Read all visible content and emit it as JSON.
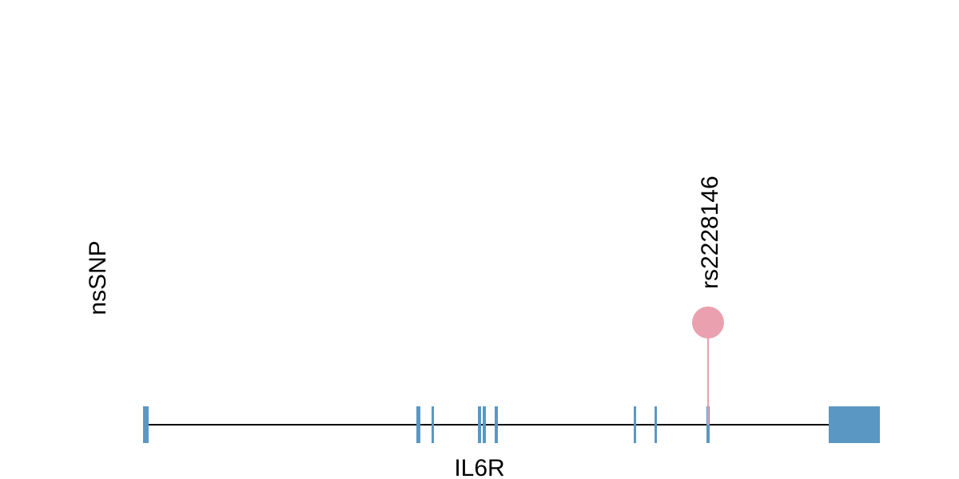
{
  "track_label": "nsSNP",
  "variant": {
    "label": "rs2228146"
  },
  "gene": {
    "label": "IL6R"
  }
}
